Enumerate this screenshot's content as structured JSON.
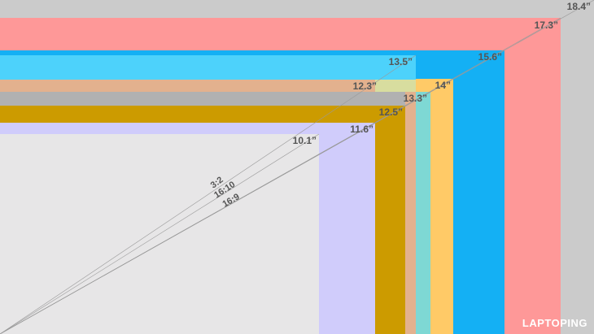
{
  "screens": [
    {
      "label": "18.4”",
      "color": "#cbcbcb"
    },
    {
      "label": "17.3”",
      "color": "#fe9898"
    },
    {
      "label": "15.6”",
      "color": "#14b0f4"
    },
    {
      "label": "14”",
      "color": "#ffca67"
    },
    {
      "label": "13.5”",
      "color": "#4dd2fb"
    },
    {
      "label": "13.3”",
      "color": "#7ed8d4"
    },
    {
      "label": "12.3”",
      "color": "#e3b18e"
    },
    {
      "label": "12.5”",
      "color": "#cc9b00"
    },
    {
      "label": "11.6”",
      "color": "#d0ccfb"
    },
    {
      "label": "10.1”",
      "color": "#e7e6e7"
    }
  ],
  "ratios": [
    {
      "label": "3:2"
    },
    {
      "label": "16:10"
    },
    {
      "label": "16:9"
    }
  ],
  "brand": "LAPTOPING"
}
